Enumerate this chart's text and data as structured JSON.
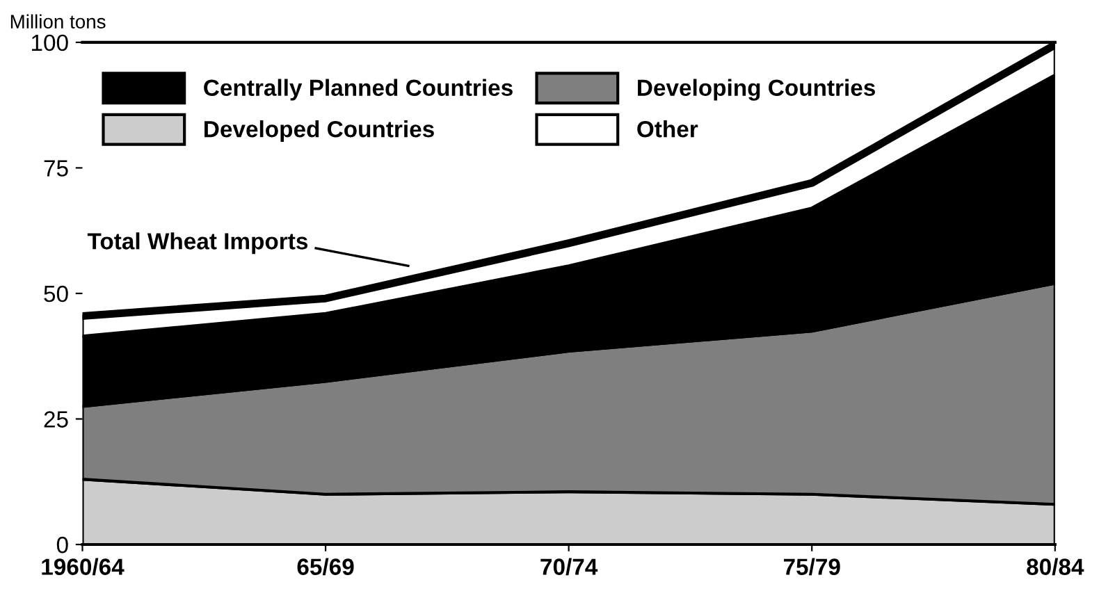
{
  "chart_data": {
    "type": "area",
    "stacked": true,
    "ylabel": "Million tons",
    "categories": [
      "1960/64",
      "65/69",
      "70/74",
      "75/79",
      "80/84"
    ],
    "series": [
      {
        "name": "Developed Countries",
        "color": "#cccccc",
        "values": [
          13,
          10,
          10.5,
          10,
          8
        ]
      },
      {
        "name": "Developing Countries",
        "color": "#7f7f7f",
        "values": [
          14.5,
          22.5,
          28,
          32.5,
          44
        ]
      },
      {
        "name": "Centrally Planned Countries",
        "color": "#000000",
        "values": [
          14,
          13.5,
          17,
          24.5,
          41.5
        ]
      },
      {
        "name": "Other",
        "color": "#ffffff",
        "values": [
          4,
          3,
          4.5,
          5,
          6
        ]
      }
    ],
    "annotations": [
      "Total Wheat Imports"
    ],
    "ylim": [
      0,
      100
    ],
    "yticks": [
      0,
      25,
      50,
      75,
      100
    ],
    "grid": false,
    "legend": "top left"
  }
}
